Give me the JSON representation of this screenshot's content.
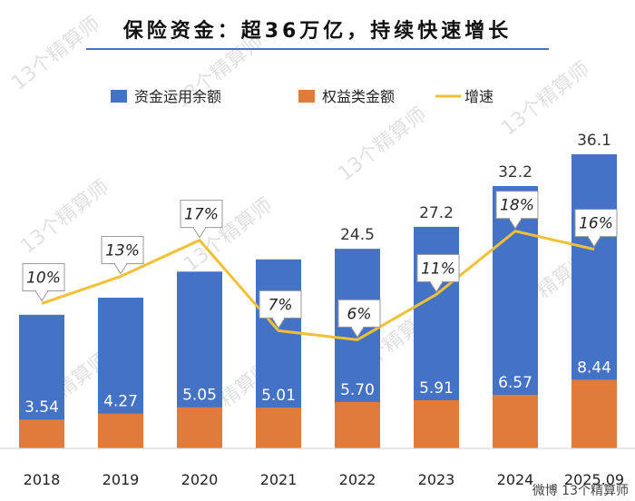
{
  "chart_data": {
    "type": "bar",
    "title": "保险资金：超36万亿，持续快速增长",
    "categories": [
      "2018",
      "2019",
      "2020",
      "2021",
      "2022",
      "2023",
      "2024",
      "2025.09"
    ],
    "series": [
      {
        "name": "资金运用余额",
        "color": "#4472C4",
        "values": [
          16.4,
          18.5,
          21.7,
          23.2,
          24.5,
          27.2,
          32.2,
          36.1
        ],
        "labels": [
          "",
          "",
          "",
          "",
          "24.5",
          "27.2",
          "32.2",
          "36.1"
        ]
      },
      {
        "name": "权益类金额",
        "color": "#E07B39",
        "values": [
          3.54,
          4.27,
          5.05,
          5.01,
          5.7,
          5.91,
          6.57,
          8.44
        ],
        "labels": [
          "3.54",
          "4.27",
          "5.05",
          "5.01",
          "5.70",
          "5.91",
          "6.57",
          "8.44"
        ]
      },
      {
        "name": "增速",
        "color": "#F2C037",
        "type": "line",
        "values": [
          10,
          13,
          17,
          7,
          6,
          11,
          18,
          16
        ],
        "labels": [
          "10%",
          "13%",
          "17%",
          "7%",
          "6%",
          "11%",
          "18%",
          "16%"
        ],
        "ylim": [
          -6,
          30
        ]
      }
    ],
    "ylim": [
      0,
      40
    ],
    "xlabel": "",
    "ylabel": "",
    "legend": "top"
  },
  "watermark_text": "13个精算师",
  "credit_text": "微博 13个精算师"
}
